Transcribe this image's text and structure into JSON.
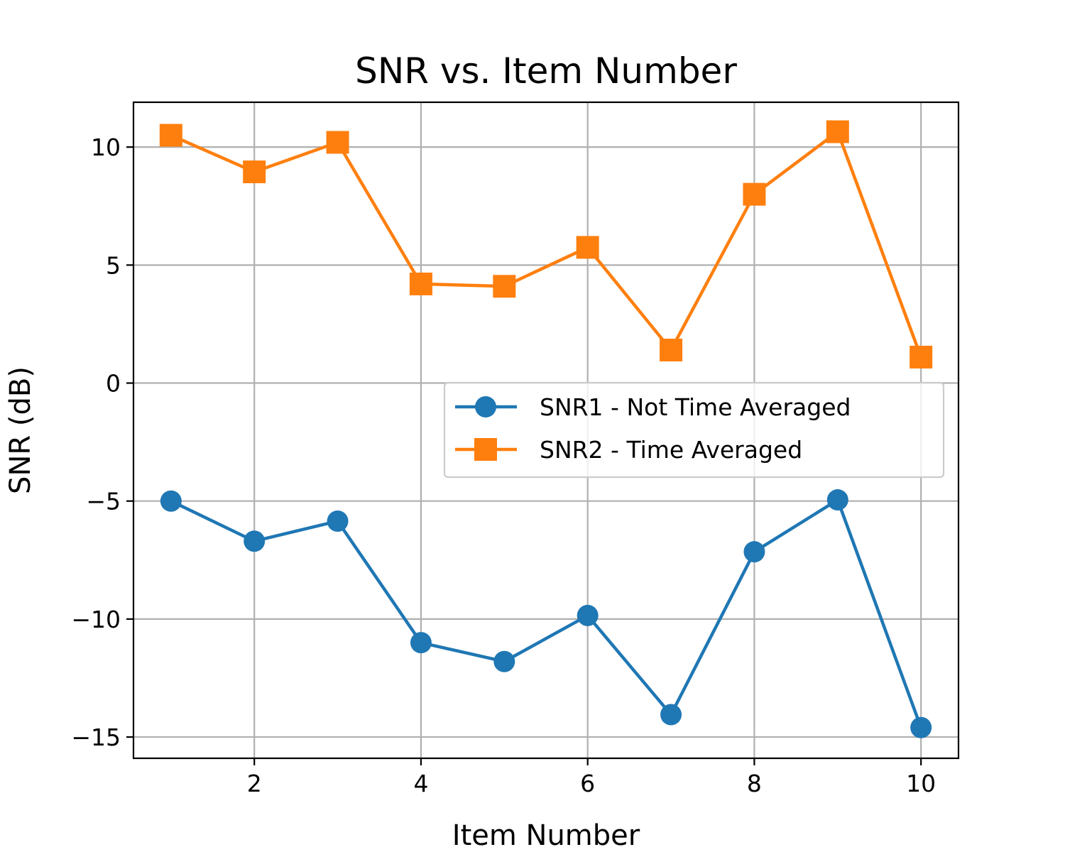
{
  "chart_data": {
    "type": "line",
    "title": "SNR vs. Item Number",
    "xlabel": "Item Number",
    "ylabel": "SNR (dB)",
    "xlim": [
      0.55,
      10.45
    ],
    "ylim": [
      -15.9,
      11.9
    ],
    "xticks": [
      2,
      4,
      6,
      8,
      10
    ],
    "xtick_labels": [
      "2",
      "4",
      "6",
      "8",
      "10"
    ],
    "yticks": [
      10,
      5,
      0,
      -5,
      -10,
      -15
    ],
    "ytick_labels": [
      "10",
      "5",
      "0",
      "−5",
      "−10",
      "−15"
    ],
    "grid": true,
    "legend": "center-right",
    "x": [
      1,
      2,
      3,
      4,
      5,
      6,
      7,
      8,
      9,
      10
    ],
    "series": [
      {
        "name": "SNR1 - Not Time Averaged",
        "color": "#1f77b4",
        "marker": "circle",
        "values": [
          -5.0,
          -6.7,
          -5.85,
          -11.0,
          -11.8,
          -9.85,
          -14.05,
          -7.15,
          -4.95,
          -14.6
        ]
      },
      {
        "name": "SNR2 - Time Averaged",
        "color": "#ff7f0e",
        "marker": "square",
        "values": [
          10.5,
          8.95,
          10.2,
          4.2,
          4.1,
          5.75,
          1.4,
          8.0,
          10.65,
          1.1
        ]
      }
    ]
  }
}
